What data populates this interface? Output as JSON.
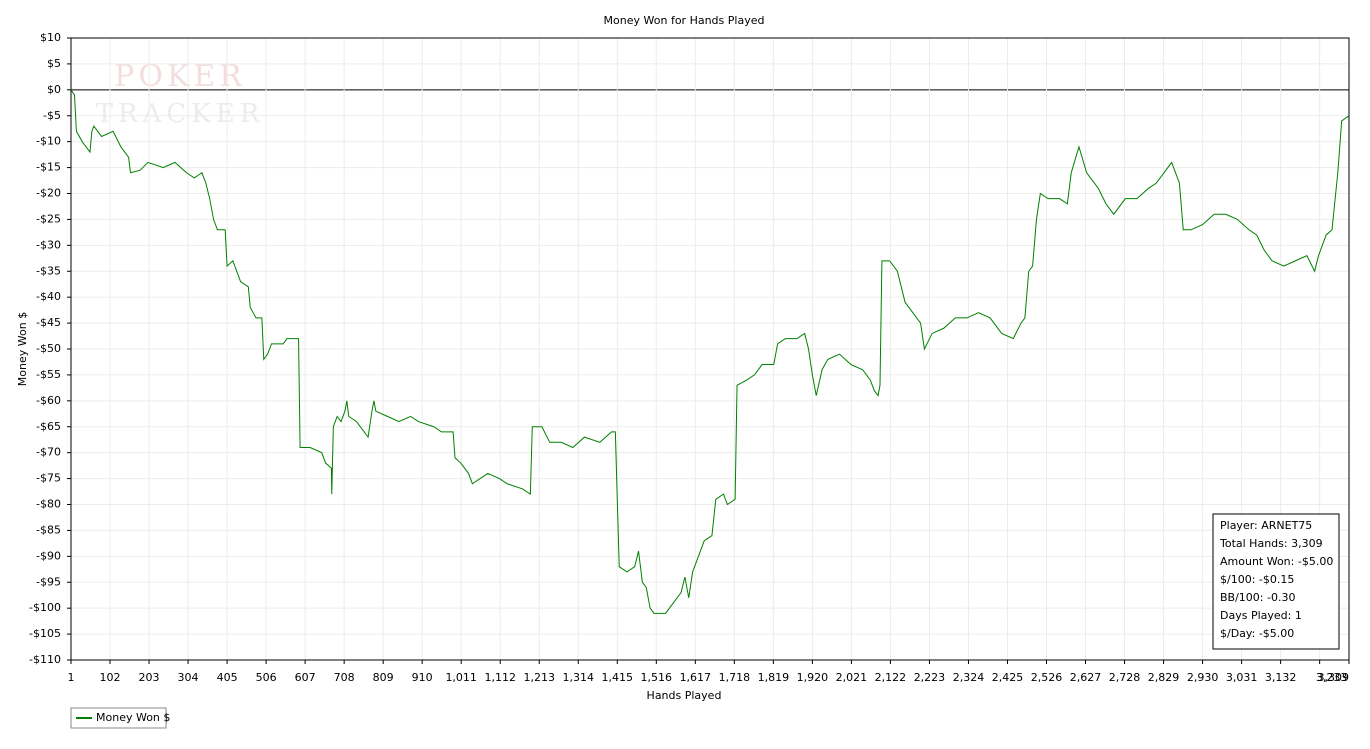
{
  "chart_data": {
    "type": "line",
    "title": "Money Won for Hands Played",
    "x_label": "Hands Played",
    "y_label": "Money Won $",
    "watermark": [
      "POKER",
      "TRACKER"
    ],
    "info_box": [
      "Player: ARNET75",
      "Total Hands: 3,309",
      "Amount Won: -$5.00",
      "$/100: -$0.15",
      "BB/100: -0.30",
      "Days Played: 1",
      "$/Day: -$5.00"
    ],
    "grid": true,
    "legend": "bottom-left",
    "xlim": [
      1,
      3309
    ],
    "ylim": [
      -110,
      10
    ],
    "xticks": [
      1,
      102,
      203,
      304,
      405,
      506,
      607,
      708,
      809,
      910,
      {
        "value": 1011,
        "label": "1,011"
      },
      {
        "value": 1112,
        "label": "1,112"
      },
      {
        "value": 1213,
        "label": "1,213"
      },
      {
        "value": 1314,
        "label": "1,314"
      },
      {
        "value": 1415,
        "label": "1,415"
      },
      {
        "value": 1516,
        "label": "1,516"
      },
      {
        "value": 1617,
        "label": "1,617"
      },
      {
        "value": 1718,
        "label": "1,718"
      },
      {
        "value": 1819,
        "label": "1,819"
      },
      {
        "value": 1920,
        "label": "1,920"
      },
      {
        "value": 2021,
        "label": "2,021"
      },
      {
        "value": 2122,
        "label": "2,122"
      },
      {
        "value": 2223,
        "label": "2,223"
      },
      {
        "value": 2324,
        "label": "2,324"
      },
      {
        "value": 2425,
        "label": "2,425"
      },
      {
        "value": 2526,
        "label": "2,526"
      },
      {
        "value": 2627,
        "label": "2,627"
      },
      {
        "value": 2728,
        "label": "2,728"
      },
      {
        "value": 2829,
        "label": "2,829"
      },
      {
        "value": 2930,
        "label": "2,930"
      },
      {
        "value": 3031,
        "label": "3,031"
      },
      {
        "value": 3132,
        "label": "3,132"
      },
      {
        "value": 3233,
        "label": "3,233"
      },
      {
        "value": 3309,
        "label": "3,309"
      }
    ],
    "yticks": [
      {
        "value": 10,
        "label": "$10"
      },
      {
        "value": 5,
        "label": "$5"
      },
      {
        "value": 0,
        "label": "$0"
      },
      {
        "value": -5,
        "label": "-$5"
      },
      {
        "value": -10,
        "label": "-$10"
      },
      {
        "value": -15,
        "label": "-$15"
      },
      {
        "value": -20,
        "label": "-$20"
      },
      {
        "value": -25,
        "label": "-$25"
      },
      {
        "value": -30,
        "label": "-$30"
      },
      {
        "value": -35,
        "label": "-$35"
      },
      {
        "value": -40,
        "label": "-$40"
      },
      {
        "value": -45,
        "label": "-$45"
      },
      {
        "value": -50,
        "label": "-$50"
      },
      {
        "value": -55,
        "label": "-$55"
      },
      {
        "value": -60,
        "label": "-$60"
      },
      {
        "value": -65,
        "label": "-$65"
      },
      {
        "value": -70,
        "label": "-$70"
      },
      {
        "value": -75,
        "label": "-$75"
      },
      {
        "value": -80,
        "label": "-$80"
      },
      {
        "value": -85,
        "label": "-$85"
      },
      {
        "value": -90,
        "label": "-$90"
      },
      {
        "value": -95,
        "label": "-$95"
      },
      {
        "value": -100,
        "label": "-$100"
      },
      {
        "value": -105,
        "label": "-$105"
      },
      {
        "value": -110,
        "label": "-$110"
      }
    ],
    "x": [
      1,
      10,
      15,
      30,
      50,
      55,
      60,
      80,
      110,
      130,
      150,
      155,
      180,
      200,
      240,
      270,
      300,
      320,
      340,
      350,
      360,
      370,
      380,
      400,
      405,
      420,
      440,
      460,
      465,
      480,
      495,
      500,
      510,
      520,
      550,
      560,
      590,
      594,
      620,
      650,
      660,
      675,
      676,
      680,
      690,
      700,
      710,
      715,
      720,
      740,
      760,
      770,
      780,
      785,
      790,
      820,
      850,
      880,
      900,
      940,
      960,
      990,
      995,
      1010,
      1030,
      1040,
      1060,
      1080,
      1110,
      1130,
      1170,
      1190,
      1195,
      1220,
      1240,
      1270,
      1300,
      1330,
      1370,
      1400,
      1410,
      1420,
      1440,
      1460,
      1470,
      1480,
      1490,
      1500,
      1510,
      1540,
      1560,
      1580,
      1590,
      1600,
      1610,
      1620,
      1640,
      1660,
      1670,
      1690,
      1700,
      1720,
      1725,
      1750,
      1770,
      1790,
      1820,
      1830,
      1850,
      1880,
      1900,
      1910,
      1920,
      1930,
      1945,
      1960,
      1990,
      2020,
      2050,
      2070,
      2080,
      2090,
      2095,
      2100,
      2120,
      2140,
      2150,
      2160,
      2180,
      2200,
      2210,
      2230,
      2260,
      2290,
      2320,
      2350,
      2380,
      2410,
      2440,
      2460,
      2470,
      2480,
      2490,
      2500,
      2510,
      2530,
      2560,
      2580,
      2590,
      2610,
      2630,
      2660,
      2680,
      2700,
      2730,
      2760,
      2790,
      2810,
      2830,
      2850,
      2870,
      2880,
      2900,
      2930,
      2960,
      2990,
      3020,
      3050,
      3070,
      3090,
      3110,
      3140,
      3170,
      3200,
      3220,
      3230,
      3250,
      3265,
      3280,
      3290,
      3309
    ],
    "series": [
      {
        "name": "Money Won $",
        "color": "#008000",
        "values": [
          0,
          -1,
          -8,
          -10,
          -12,
          -8,
          -7,
          -9,
          -8,
          -11,
          -13,
          -16,
          -15.5,
          -14,
          -15,
          -14,
          -16,
          -17,
          -16,
          -18,
          -21,
          -25,
          -27,
          -27,
          -34,
          -33,
          -37,
          -38,
          -42,
          -44,
          -44,
          -52,
          -51,
          -49,
          -49,
          -48,
          -48,
          -69,
          -69,
          -70,
          -72,
          -73,
          -78,
          -65,
          -63,
          -64,
          -62,
          -60,
          -63,
          -64,
          -66,
          -67,
          -62,
          -60,
          -62,
          -63,
          -64,
          -63,
          -64,
          -65,
          -66,
          -66,
          -71,
          -72,
          -74,
          -76,
          -75,
          -74,
          -75,
          -76,
          -77,
          -78,
          -65,
          -65,
          -68,
          -68,
          -69,
          -67,
          -68,
          -66,
          -66,
          -92,
          -93,
          -92,
          -89,
          -95,
          -96,
          -100,
          -101,
          -101,
          -99,
          -97,
          -94,
          -98,
          -93,
          -91,
          -87,
          -86,
          -79,
          -78,
          -80,
          -79,
          -57,
          -56,
          -55,
          -53,
          -53,
          -49,
          -48,
          -48,
          -47,
          -50,
          -55,
          -59,
          -54,
          -52,
          -51,
          -53,
          -54,
          -56,
          -58,
          -59,
          -57,
          -33,
          -33,
          -35,
          -38,
          -41,
          -43,
          -45,
          -50,
          -47,
          -46,
          -44,
          -44,
          -43,
          -44,
          -47,
          -48,
          -45,
          -44,
          -35,
          -34,
          -25,
          -20,
          -21,
          -21,
          -22,
          -16,
          -11,
          -16,
          -19,
          -22,
          -24,
          -21,
          -21,
          -19,
          -18,
          -16,
          -14,
          -18,
          -27,
          -27,
          -26,
          -24,
          -24,
          -25,
          -27,
          -28,
          -31,
          -33,
          -34,
          -33,
          -32,
          -35,
          -32,
          -28,
          -27,
          -16,
          -6,
          -5
        ]
      }
    ]
  }
}
